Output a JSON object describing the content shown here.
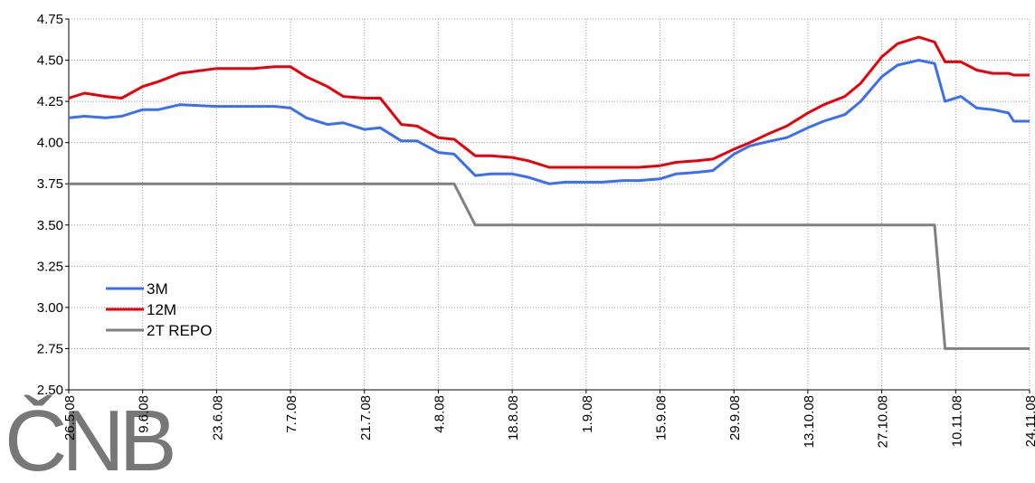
{
  "chart_data": {
    "type": "line",
    "logo": "ČNB",
    "x": [
      "26.5.08",
      "29.5.08",
      "2.6.08",
      "5.6.08",
      "9.6.08",
      "12.6.08",
      "16.6.08",
      "23.6.08",
      "30.6.08",
      "4.7.08",
      "7.7.08",
      "10.7.08",
      "14.7.08",
      "17.7.08",
      "21.7.08",
      "24.7.08",
      "28.7.08",
      "31.7.08",
      "4.8.08",
      "7.8.08",
      "11.8.08",
      "14.8.08",
      "18.8.08",
      "21.8.08",
      "25.8.08",
      "28.8.08",
      "1.9.08",
      "4.9.08",
      "8.9.08",
      "11.9.08",
      "15.9.08",
      "18.9.08",
      "22.9.08",
      "25.9.08",
      "29.9.08",
      "2.10.08",
      "6.10.08",
      "9.10.08",
      "13.10.08",
      "16.10.08",
      "20.10.08",
      "23.10.08",
      "27.10.08",
      "30.10.08",
      "3.11.08",
      "6.11.08",
      "8.11.08",
      "11.11.08",
      "14.11.08",
      "17.11.08",
      "20.11.08",
      "21.11.08",
      "24.11.08"
    ],
    "series": [
      {
        "name": "3M",
        "color": "#3b6ff0",
        "values": [
          4.15,
          4.16,
          4.15,
          4.16,
          4.2,
          4.2,
          4.23,
          4.22,
          4.22,
          4.22,
          4.21,
          4.15,
          4.11,
          4.12,
          4.08,
          4.09,
          4.01,
          4.01,
          3.94,
          3.93,
          3.8,
          3.81,
          3.81,
          3.79,
          3.75,
          3.76,
          3.76,
          3.76,
          3.77,
          3.77,
          3.78,
          3.81,
          3.82,
          3.83,
          3.93,
          3.98,
          4.01,
          4.03,
          4.09,
          4.13,
          4.17,
          4.25,
          4.4,
          4.47,
          4.5,
          4.48,
          4.25,
          4.28,
          4.21,
          4.2,
          4.18,
          4.13,
          4.13
        ]
      },
      {
        "name": "12M",
        "color": "#e8000b",
        "values": [
          4.27,
          4.3,
          4.28,
          4.27,
          4.34,
          4.37,
          4.42,
          4.45,
          4.45,
          4.46,
          4.46,
          4.4,
          4.34,
          4.28,
          4.27,
          4.27,
          4.11,
          4.1,
          4.03,
          4.02,
          3.92,
          3.92,
          3.91,
          3.89,
          3.85,
          3.85,
          3.85,
          3.85,
          3.85,
          3.85,
          3.86,
          3.88,
          3.89,
          3.9,
          3.96,
          4.0,
          4.06,
          4.1,
          4.18,
          4.23,
          4.28,
          4.36,
          4.52,
          4.6,
          4.64,
          4.61,
          4.49,
          4.49,
          4.44,
          4.42,
          4.42,
          4.41,
          4.41
        ]
      },
      {
        "name": "2T REPO",
        "color": "#808080",
        "values": [
          3.75,
          3.75,
          3.75,
          3.75,
          3.75,
          3.75,
          3.75,
          3.75,
          3.75,
          3.75,
          3.75,
          3.75,
          3.75,
          3.75,
          3.75,
          3.75,
          3.75,
          3.75,
          3.75,
          3.75,
          3.5,
          3.5,
          3.5,
          3.5,
          3.5,
          3.5,
          3.5,
          3.5,
          3.5,
          3.5,
          3.5,
          3.5,
          3.5,
          3.5,
          3.5,
          3.5,
          3.5,
          3.5,
          3.5,
          3.5,
          3.5,
          3.5,
          3.5,
          3.5,
          3.5,
          3.5,
          2.75,
          2.75,
          2.75,
          2.75,
          2.75,
          2.75,
          2.75
        ]
      }
    ],
    "xlim": [
      "26.5.08",
      "24.11.08"
    ],
    "xticks": [
      "26.5.08",
      "9.6.08",
      "23.6.08",
      "7.7.08",
      "21.7.08",
      "4.8.08",
      "18.8.08",
      "1.9.08",
      "15.9.08",
      "29.9.08",
      "13.10.08",
      "27.10.08",
      "10.11.08",
      "24.11.08"
    ],
    "ylim": [
      2.5,
      4.75
    ],
    "yticks": [
      4.75,
      {
        "value": 4.5,
        "label": "4.50"
      },
      4.25,
      {
        "value": 4,
        "label": "4.00"
      },
      3.75,
      {
        "value": 3.5,
        "label": "3.50"
      },
      3.25,
      {
        "value": 3,
        "label": "3.00"
      },
      2.75,
      {
        "value": 2.5,
        "label": "2.50"
      }
    ],
    "grid": true,
    "legend": "lower left"
  }
}
